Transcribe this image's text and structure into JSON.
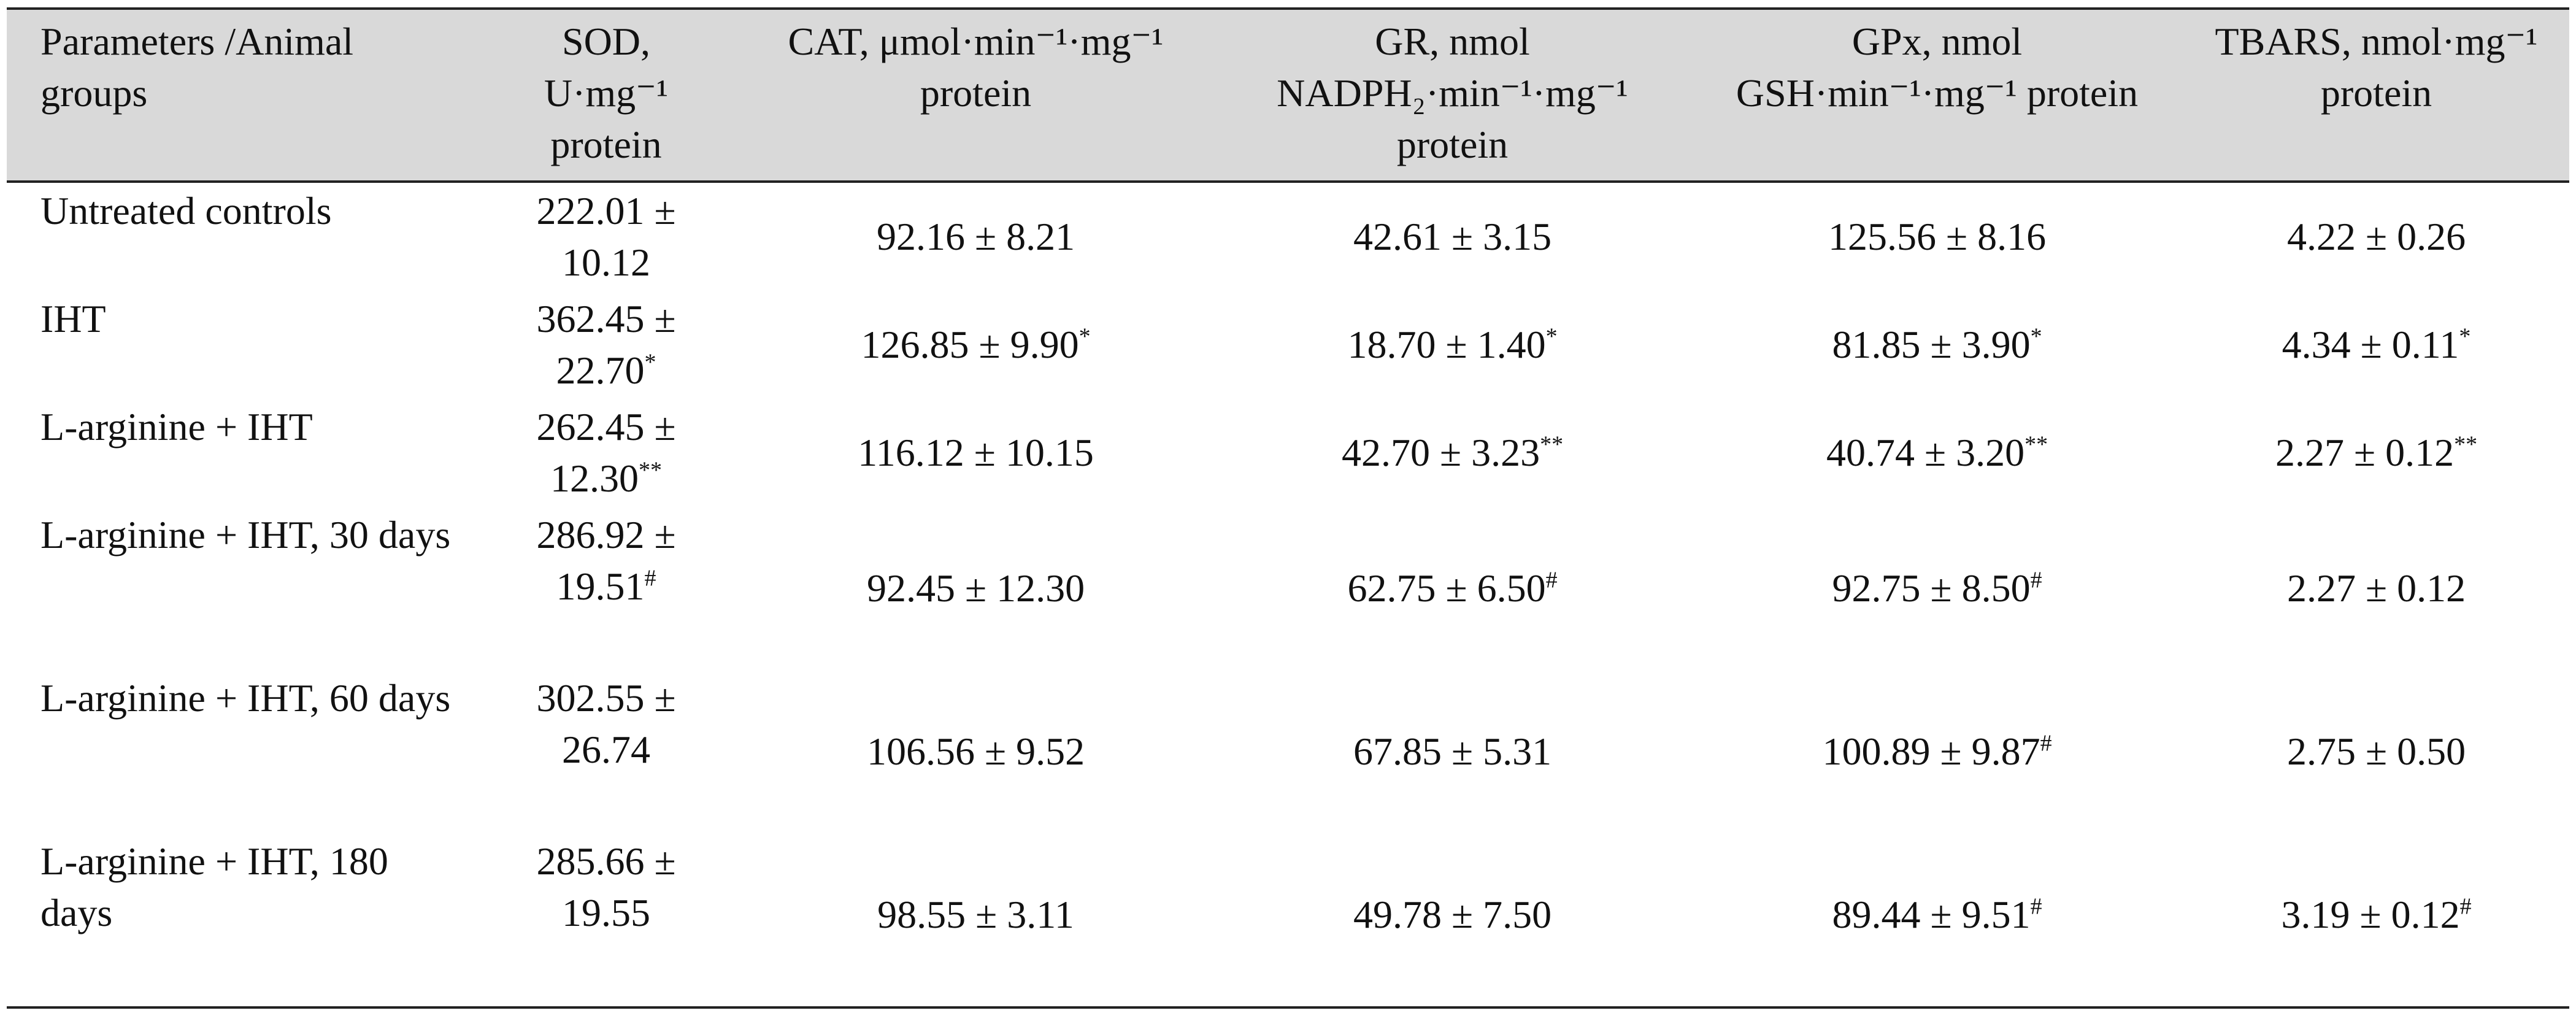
{
  "table": {
    "header": [
      "Parameters /Animal groups",
      "SOD, U·mg⁻¹ protein",
      "CAT, μmol·min⁻¹·mg⁻¹ protein",
      "GR, nmol NADPH₂·min⁻¹·mg⁻¹ protein",
      "GPx, nmol GSH·min⁻¹·mg⁻¹ protein",
      "TBARS, nmol·mg⁻¹ protein"
    ],
    "rows": [
      {
        "group": "Untreated controls",
        "cells": [
          {
            "text": "222.01 ± 10.12"
          },
          {
            "text": "92.16 ± 8.21"
          },
          {
            "text": "42.61 ± 3.15"
          },
          {
            "text": "125.56 ± 8.16"
          },
          {
            "text": "4.22 ± 0.26"
          }
        ]
      },
      {
        "group": "IHT",
        "cells": [
          {
            "text": "362.45 ± 22.70",
            "sup": "*"
          },
          {
            "text": "126.85 ± 9.90",
            "sup": "*"
          },
          {
            "text": "18.70 ± 1.40",
            "sup": "*"
          },
          {
            "text": "81.85 ± 3.90",
            "sup": "*"
          },
          {
            "text": "4.34 ± 0.11",
            "sup": "*"
          }
        ]
      },
      {
        "group": "L-arginine + IHT",
        "cells": [
          {
            "text": "262.45 ± 12.30",
            "sup": "**"
          },
          {
            "text": "116.12 ± 10.15"
          },
          {
            "text": "42.70 ± 3.23",
            "sup": "**"
          },
          {
            "text": "40.74 ± 3.20",
            "sup": "**"
          },
          {
            "text": "2.27 ± 0.12",
            "sup": "**"
          }
        ]
      },
      {
        "group": "L-arginine + IHT, 30 days",
        "cells": [
          {
            "text": "286.92 ± 19.51",
            "sup": "#"
          },
          {
            "text": "92.45 ± 12.30"
          },
          {
            "text": "62.75 ± 6.50",
            "sup": "#"
          },
          {
            "text": "92.75 ± 8.50",
            "sup": "#"
          },
          {
            "text": "2.27 ± 0.12"
          }
        ]
      },
      {
        "group": "L-arginine + IHT, 60 days",
        "cells": [
          {
            "text": "302.55 ± 26.74"
          },
          {
            "text": "106.56 ± 9.52"
          },
          {
            "text": "67.85 ± 5.31"
          },
          {
            "text": "100.89 ± 9.87",
            "sup": "#"
          },
          {
            "text": "2.75 ± 0.50"
          }
        ]
      },
      {
        "group": "L-arginine + IHT, 180 days",
        "cells": [
          {
            "text": "285.66 ± 19.55"
          },
          {
            "text": "98.55 ± 3.11"
          },
          {
            "text": "49.78 ± 7.50"
          },
          {
            "text": "89.44 ± 9.51",
            "sup": "#"
          },
          {
            "text": "3.19 ± 0.12",
            "sup": "#"
          }
        ]
      }
    ]
  }
}
